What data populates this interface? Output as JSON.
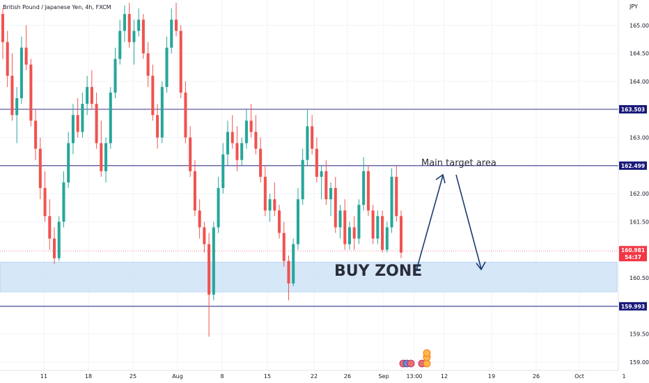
{
  "header": {
    "title": "British Pound / Japanese Yen, 4h, FXCM",
    "currency": "JPY"
  },
  "chart_data": {
    "type": "candlestick",
    "y_ticks": [
      "165.000",
      "164.500",
      "164.000",
      "163.000",
      "162.000",
      "161.500",
      "160.500",
      "159.500",
      "159.000"
    ],
    "x_ticks": [
      "11",
      "18",
      "25",
      "Aug",
      "8",
      "15",
      "22",
      "26",
      "Sep",
      "13:00",
      "12",
      "19",
      "26",
      "Oct",
      "1"
    ],
    "ylim": [
      158.85,
      165.45
    ],
    "levels": [
      {
        "label": "163.503",
        "value": 163.503,
        "color": "#1a1a7a"
      },
      {
        "label": "162.499",
        "value": 162.499,
        "color": "#1a1a7a"
      },
      {
        "label": "159.993",
        "value": 159.993,
        "color": "#1a1a7a"
      }
    ],
    "current_price": {
      "label": "160.981",
      "value": 160.981,
      "countdown": "54:37",
      "color": "#f23645"
    },
    "buy_zone": {
      "low": 160.25,
      "high": 160.78,
      "label": "BUY ZONE"
    },
    "target_label": "Main target area",
    "candles": [
      [
        165.2,
        165.3,
        164.4,
        164.7
      ],
      [
        164.7,
        164.9,
        163.9,
        164.1
      ],
      [
        164.1,
        164.5,
        163.3,
        163.4
      ],
      [
        163.4,
        163.9,
        162.9,
        163.7
      ],
      [
        163.7,
        164.8,
        163.6,
        164.6
      ],
      [
        164.6,
        165.0,
        164.2,
        164.3
      ],
      [
        164.3,
        164.4,
        163.2,
        163.3
      ],
      [
        163.3,
        163.5,
        162.6,
        162.8
      ],
      [
        162.8,
        163.0,
        161.9,
        162.1
      ],
      [
        162.1,
        162.4,
        161.5,
        161.6
      ],
      [
        161.6,
        161.9,
        161.0,
        161.2
      ],
      [
        161.2,
        161.4,
        160.75,
        160.85
      ],
      [
        160.85,
        161.6,
        160.8,
        161.5
      ],
      [
        161.5,
        162.4,
        161.4,
        162.2
      ],
      [
        162.2,
        163.1,
        162.1,
        162.9
      ],
      [
        162.9,
        163.6,
        162.7,
        163.4
      ],
      [
        163.4,
        163.7,
        163.0,
        163.1
      ],
      [
        163.1,
        163.8,
        163.0,
        163.6
      ],
      [
        163.6,
        164.1,
        163.4,
        163.9
      ],
      [
        163.9,
        164.2,
        163.5,
        163.6
      ],
      [
        163.6,
        163.8,
        162.8,
        162.9
      ],
      [
        162.9,
        163.3,
        162.3,
        162.4
      ],
      [
        162.4,
        163.0,
        162.2,
        162.9
      ],
      [
        162.9,
        163.9,
        162.8,
        163.8
      ],
      [
        163.8,
        164.6,
        163.7,
        164.4
      ],
      [
        164.4,
        165.1,
        164.3,
        164.9
      ],
      [
        164.9,
        165.35,
        164.7,
        165.2
      ],
      [
        165.2,
        165.4,
        164.6,
        164.7
      ],
      [
        164.7,
        165.1,
        164.3,
        164.9
      ],
      [
        164.9,
        165.3,
        164.8,
        165.1
      ],
      [
        165.1,
        165.2,
        164.4,
        164.5
      ],
      [
        164.5,
        164.7,
        163.9,
        164.1
      ],
      [
        164.1,
        164.3,
        163.3,
        163.4
      ],
      [
        163.4,
        163.6,
        162.8,
        163.0
      ],
      [
        163.0,
        164.0,
        162.9,
        163.9
      ],
      [
        163.9,
        164.8,
        163.8,
        164.6
      ],
      [
        164.6,
        165.3,
        164.5,
        165.1
      ],
      [
        165.1,
        165.4,
        164.8,
        164.9
      ],
      [
        164.9,
        165.0,
        163.7,
        163.8
      ],
      [
        163.8,
        164.0,
        162.9,
        163.0
      ],
      [
        163.0,
        163.2,
        162.3,
        162.4
      ],
      [
        162.4,
        162.6,
        161.6,
        161.7
      ],
      [
        161.7,
        161.9,
        161.2,
        161.4
      ],
      [
        161.4,
        161.5,
        160.95,
        161.1
      ],
      [
        161.1,
        161.3,
        159.45,
        160.2
      ],
      [
        160.2,
        161.5,
        160.1,
        161.4
      ],
      [
        161.4,
        162.3,
        161.3,
        162.1
      ],
      [
        162.1,
        162.9,
        162.0,
        162.7
      ],
      [
        162.7,
        163.3,
        162.5,
        163.1
      ],
      [
        163.1,
        163.4,
        162.8,
        162.9
      ],
      [
        162.9,
        163.2,
        162.4,
        162.6
      ],
      [
        162.6,
        163.0,
        162.5,
        162.9
      ],
      [
        162.9,
        163.5,
        162.8,
        163.3
      ],
      [
        163.3,
        163.6,
        163.0,
        163.1
      ],
      [
        163.1,
        163.4,
        162.7,
        162.8
      ],
      [
        162.8,
        163.0,
        162.2,
        162.3
      ],
      [
        162.3,
        162.5,
        161.6,
        161.7
      ],
      [
        161.7,
        162.0,
        161.5,
        161.9
      ],
      [
        161.9,
        162.2,
        161.6,
        161.7
      ],
      [
        161.7,
        161.8,
        161.2,
        161.3
      ],
      [
        161.3,
        161.5,
        160.7,
        160.8
      ],
      [
        160.8,
        160.9,
        160.1,
        160.4
      ],
      [
        160.4,
        161.2,
        160.35,
        161.1
      ],
      [
        161.1,
        162.1,
        161.0,
        161.9
      ],
      [
        161.9,
        162.8,
        161.8,
        162.6
      ],
      [
        162.6,
        163.5,
        162.5,
        163.2
      ],
      [
        163.2,
        163.4,
        162.7,
        162.8
      ],
      [
        162.8,
        163.0,
        162.2,
        162.3
      ],
      [
        162.3,
        162.5,
        161.9,
        162.4
      ],
      [
        162.4,
        162.6,
        161.8,
        161.9
      ],
      [
        161.9,
        162.2,
        161.6,
        162.1
      ],
      [
        162.1,
        162.3,
        161.3,
        161.4
      ],
      [
        161.4,
        161.8,
        161.2,
        161.7
      ],
      [
        161.7,
        161.9,
        161.0,
        161.1
      ],
      [
        161.1,
        161.5,
        161.0,
        161.4
      ],
      [
        161.4,
        161.6,
        161.0,
        161.2
      ],
      [
        161.2,
        161.9,
        161.1,
        161.8
      ],
      [
        161.8,
        162.65,
        161.7,
        162.4
      ],
      [
        162.4,
        162.5,
        161.6,
        161.7
      ],
      [
        161.7,
        161.8,
        161.1,
        161.2
      ],
      [
        161.2,
        161.7,
        161.1,
        161.6
      ],
      [
        161.6,
        161.7,
        160.95,
        161.0
      ],
      [
        161.0,
        161.5,
        160.95,
        161.4
      ],
      [
        161.4,
        162.45,
        161.3,
        162.3
      ],
      [
        162.3,
        162.5,
        161.5,
        161.6
      ],
      [
        161.6,
        161.7,
        160.85,
        160.95
      ]
    ]
  }
}
